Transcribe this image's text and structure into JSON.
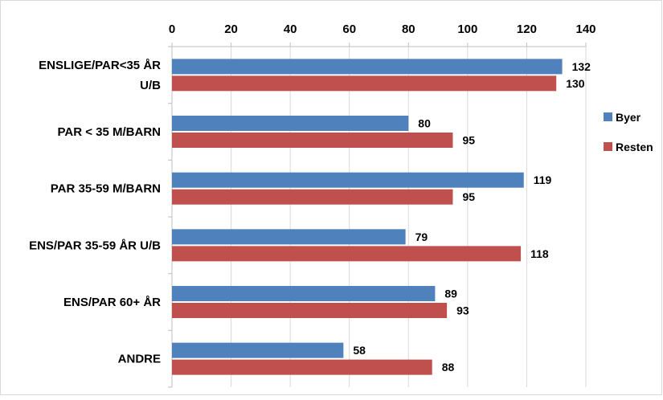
{
  "chart_data": {
    "type": "bar",
    "orientation": "horizontal",
    "categories": [
      [
        "ENSLIGE/PAR<35 ÅR",
        "U/B"
      ],
      [
        "PAR < 35 M/BARN"
      ],
      [
        "PAR 35-59 M/BARN"
      ],
      [
        "ENS/PAR 35-59 ÅR U/B"
      ],
      [
        "ENS/PAR 60+ ÅR"
      ],
      [
        "ANDRE"
      ]
    ],
    "series": [
      {
        "name": "Byer",
        "values": [
          132,
          80,
          119,
          79,
          89,
          58
        ],
        "color": "#4f81bd"
      },
      {
        "name": "Resten",
        "values": [
          130,
          95,
          95,
          118,
          93,
          88
        ],
        "color": "#c0504d"
      }
    ],
    "xlim": [
      0,
      140
    ],
    "xticks": [
      0,
      20,
      40,
      60,
      80,
      100,
      120,
      140
    ],
    "x_axis_position": "top",
    "grid": true,
    "legend_position": "right",
    "data_labels": true,
    "title": "",
    "xlabel": "",
    "ylabel": ""
  }
}
